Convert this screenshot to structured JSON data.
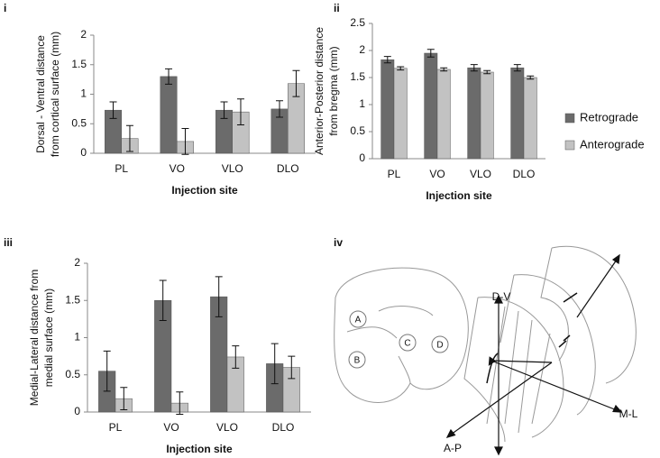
{
  "chart_data": [
    {
      "panel": "i",
      "type": "bar",
      "xlabel": "Injection site",
      "ylabel": [
        "Dorsal - Ventral distance",
        "from cortical surface (mm)"
      ],
      "categories": [
        "PL",
        "VO",
        "VLO",
        "DLO"
      ],
      "series": [
        {
          "color": "#6b6b6b",
          "values": [
            0.73,
            1.3,
            0.73,
            0.75
          ],
          "errors": [
            0.14,
            0.13,
            0.14,
            0.14
          ]
        },
        {
          "color": "#c2c2c2",
          "values": [
            0.25,
            0.2,
            0.7,
            1.18
          ],
          "errors": [
            0.22,
            0.22,
            0.22,
            0.22
          ]
        }
      ],
      "ylim": [
        0,
        2
      ],
      "yticks": [
        0,
        0.5,
        1,
        1.5,
        2
      ]
    },
    {
      "panel": "ii",
      "type": "bar",
      "xlabel": "Injection site",
      "ylabel": [
        "Anterior-Posterior distance",
        "from bregma (mm)"
      ],
      "categories": [
        "PL",
        "VO",
        "VLO",
        "DLO"
      ],
      "series": [
        {
          "name": "Retrograde",
          "color": "#6b6b6b",
          "values": [
            1.83,
            1.95,
            1.68,
            1.68
          ],
          "errors": [
            0.06,
            0.07,
            0.06,
            0.06
          ]
        },
        {
          "name": "Anterograde",
          "color": "#c2c2c2",
          "values": [
            1.67,
            1.65,
            1.6,
            1.5
          ],
          "errors": [
            0.03,
            0.03,
            0.03,
            0.03
          ]
        }
      ],
      "ylim": [
        0,
        2.5
      ],
      "yticks": [
        0,
        0.5,
        1,
        1.5,
        2,
        2.5
      ],
      "legend": "right"
    },
    {
      "panel": "iii",
      "type": "bar",
      "xlabel": "Injection site",
      "ylabel": [
        "Medial-Lateral distance from",
        "medial surface (mm)"
      ],
      "categories": [
        "PL",
        "VO",
        "VLO",
        "DLO"
      ],
      "series": [
        {
          "color": "#6b6b6b",
          "values": [
            0.55,
            1.5,
            1.55,
            0.65
          ],
          "errors": [
            0.27,
            0.27,
            0.27,
            0.27
          ]
        },
        {
          "color": "#c2c2c2",
          "values": [
            0.18,
            0.12,
            0.74,
            0.6
          ],
          "errors": [
            0.15,
            0.15,
            0.15,
            0.15
          ]
        }
      ],
      "ylim": [
        0,
        2
      ],
      "yticks": [
        0,
        0.5,
        1,
        1.5,
        2
      ]
    }
  ],
  "diagram": {
    "panel": "iv",
    "regions": [
      "A",
      "B",
      "C",
      "D"
    ],
    "axes": [
      "D-V",
      "M-L",
      "A-P"
    ]
  }
}
